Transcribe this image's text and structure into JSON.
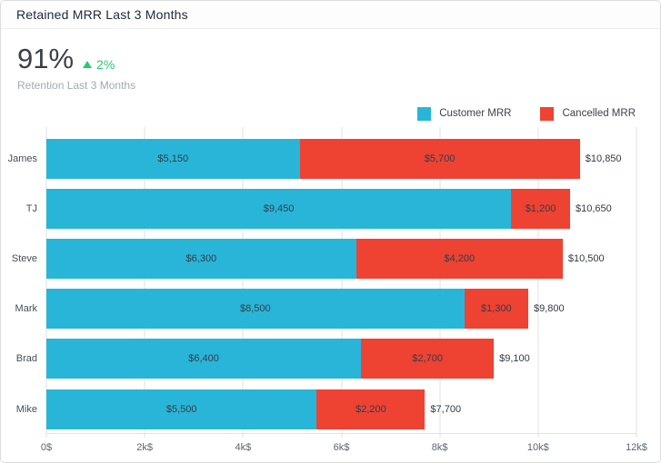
{
  "header": {
    "title": "Retained MRR Last 3 Months"
  },
  "kpi": {
    "value": "91%",
    "delta": "2%",
    "delta_direction": "up",
    "delta_color": "#2bc96f",
    "label": "Retention Last 3 Months"
  },
  "legend": [
    {
      "label": "Customer MRR",
      "color": "#29b5d8"
    },
    {
      "label": "Cancelled MRR",
      "color": "#ee4233"
    }
  ],
  "chart_data": {
    "type": "bar",
    "orientation": "horizontal",
    "stacked": true,
    "grid": true,
    "legend_position": "top-right",
    "categories": [
      "James",
      "TJ",
      "Steve",
      "Mark",
      "Brad",
      "Mike"
    ],
    "series": [
      {
        "name": "Customer MRR",
        "color": "#29b5d8",
        "values": [
          5150,
          9450,
          6300,
          8500,
          6400,
          5500
        ],
        "labels": [
          "$5,150",
          "$9,450",
          "$6,300",
          "$8,500",
          "$6,400",
          "$5,500"
        ]
      },
      {
        "name": "Cancelled MRR",
        "color": "#ee4233",
        "values": [
          5700,
          1200,
          4200,
          1300,
          2700,
          2200
        ],
        "labels": [
          "$5,700",
          "$1,200",
          "$4,200",
          "$1,300",
          "$2,700",
          "$2,200"
        ]
      }
    ],
    "totals": [
      10850,
      10650,
      10500,
      9800,
      9100,
      7700
    ],
    "total_labels": [
      "$10,850",
      "$10,650",
      "$10,500",
      "$9,800",
      "$9,100",
      "$7,700"
    ],
    "xlim": [
      0,
      12000
    ],
    "x_ticks": [
      "0$",
      "2k$",
      "4k$",
      "6k$",
      "8k$",
      "10k$",
      "12k$"
    ]
  }
}
